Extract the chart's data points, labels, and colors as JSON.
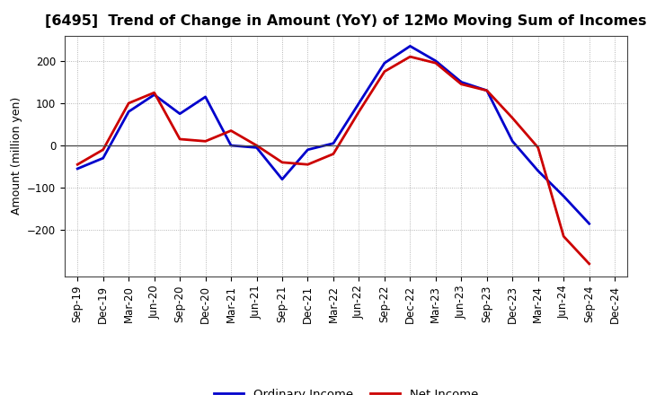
{
  "title": "[6495]  Trend of Change in Amount (YoY) of 12Mo Moving Sum of Incomes",
  "ylabel": "Amount (million yen)",
  "x_labels": [
    "Sep-19",
    "Dec-19",
    "Mar-20",
    "Jun-20",
    "Sep-20",
    "Dec-20",
    "Mar-21",
    "Jun-21",
    "Sep-21",
    "Dec-21",
    "Mar-22",
    "Jun-22",
    "Sep-22",
    "Dec-22",
    "Mar-23",
    "Jun-23",
    "Sep-23",
    "Dec-23",
    "Mar-24",
    "Jun-24",
    "Sep-24",
    "Dec-24"
  ],
  "ordinary_income": [
    -55,
    -30,
    80,
    120,
    75,
    115,
    0,
    -5,
    -80,
    -10,
    5,
    100,
    195,
    235,
    200,
    150,
    130,
    10,
    -60,
    -120,
    -185,
    null
  ],
  "net_income": [
    -45,
    -10,
    100,
    125,
    15,
    10,
    35,
    0,
    -40,
    -45,
    -20,
    80,
    175,
    210,
    195,
    145,
    130,
    65,
    -5,
    -215,
    -280,
    null
  ],
  "ordinary_color": "#0000cc",
  "net_color": "#cc0000",
  "ylim": [
    -310,
    260
  ],
  "yticks": [
    200,
    100,
    0,
    -100,
    -200
  ],
  "background_color": "#ffffff",
  "grid_color": "#999999",
  "legend_labels": [
    "Ordinary Income",
    "Net Income"
  ],
  "title_fontsize": 11.5,
  "axis_fontsize": 9,
  "tick_fontsize": 8.5,
  "legend_fontsize": 9.5,
  "linewidth": 2.0
}
